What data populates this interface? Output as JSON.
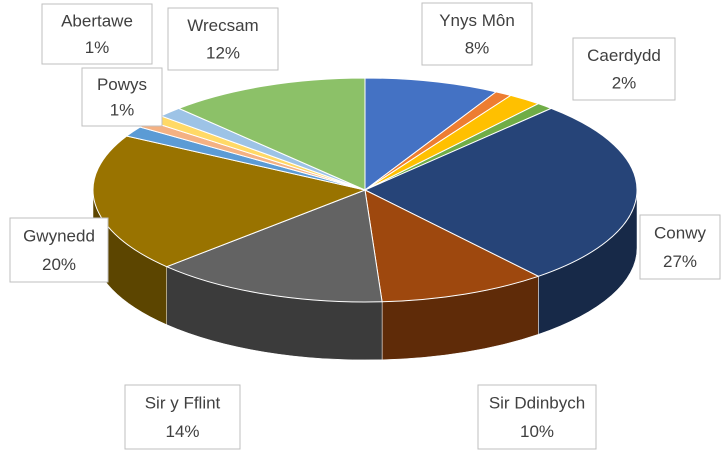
{
  "chart_data": {
    "type": "pie3d",
    "categories": [
      "Ynys Môn",
      null,
      "Caerdydd",
      null,
      "Conwy",
      "Sir Ddinbych",
      "Sir y Fflint",
      "Gwynedd",
      null,
      "Powys",
      "Abertawe",
      null,
      "Wrecsam"
    ],
    "values": [
      8,
      1,
      2,
      1,
      27,
      10,
      14,
      20,
      1.5,
      1,
      1,
      1.5,
      12
    ],
    "value_labels": [
      "8%",
      null,
      "2%",
      null,
      "27%",
      "10%",
      "14%",
      "20%",
      null,
      "1%",
      "1%",
      null,
      "12%"
    ],
    "colors": [
      "#4472c4",
      "#ed7d31",
      "#ffc000",
      "#70ad47",
      "#264478",
      "#9e480e",
      "#636363",
      "#997300",
      "#5b9bd5",
      "#f4b183",
      "#ffd966",
      "#9dc3e6",
      "#8cc168"
    ]
  }
}
